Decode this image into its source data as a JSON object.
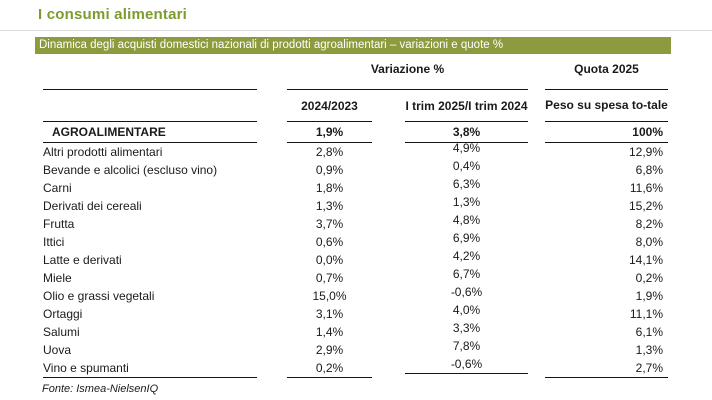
{
  "header": {
    "page_title": "I consumi alimentari",
    "banner": "Dinamica degli acquisti domestici nazionali di prodotti agroalimentari – variazioni e quote %"
  },
  "colors": {
    "title_green": "#7d9b2e",
    "banner_background": "#8e9a3e",
    "banner_text": "#ffffff",
    "table_line": "#151515",
    "top_divider": "#dcdcdc"
  },
  "table": {
    "group_headers": {
      "variazione": "Variazione %",
      "quota": "Quota 2025"
    },
    "sub_headers": {
      "col_2024_2023": "2024/2023",
      "col_trim": "I trim 2025/I trim 2024",
      "col_peso": "Peso su spesa to-tale"
    },
    "rows": [
      {
        "label": "AGROALIMENTARE",
        "var_2024_2023": "1,9%",
        "var_trim": "3,8%",
        "quota": "100%"
      },
      {
        "label": "Altri prodotti alimentari",
        "var_2024_2023": "2,8%",
        "var_trim": "4,9%",
        "quota": "12,9%"
      },
      {
        "label": "Bevande e alcolici (escluso vino)",
        "var_2024_2023": "0,9%",
        "var_trim": "0,4%",
        "quota": "6,8%"
      },
      {
        "label": "Carni",
        "var_2024_2023": "1,8%",
        "var_trim": "6,3%",
        "quota": "11,6%"
      },
      {
        "label": "Derivati dei cereali",
        "var_2024_2023": "1,3%",
        "var_trim": "1,3%",
        "quota": "15,2%"
      },
      {
        "label": "Frutta",
        "var_2024_2023": "3,7%",
        "var_trim": "4,8%",
        "quota": "8,2%"
      },
      {
        "label": "Ittici",
        "var_2024_2023": "0,6%",
        "var_trim": "6,9%",
        "quota": "8,0%"
      },
      {
        "label": "Latte e derivati",
        "var_2024_2023": "0,0%",
        "var_trim": "4,2%",
        "quota": "14,1%"
      },
      {
        "label": "Miele",
        "var_2024_2023": "0,7%",
        "var_trim": "6,7%",
        "quota": "0,2%"
      },
      {
        "label": "Olio e grassi vegetali",
        "var_2024_2023": "15,0%",
        "var_trim": "-0,6%",
        "quota": "1,9%"
      },
      {
        "label": "Ortaggi",
        "var_2024_2023": "3,1%",
        "var_trim": "4,0%",
        "quota": "11,1%"
      },
      {
        "label": "Salumi",
        "var_2024_2023": "1,4%",
        "var_trim": "3,3%",
        "quota": "6,1%"
      },
      {
        "label": "Uova",
        "var_2024_2023": "2,9%",
        "var_trim": "7,8%",
        "quota": "1,3%"
      },
      {
        "label": "Vino e spumanti",
        "var_2024_2023": "0,2%",
        "var_trim": "-0,6%",
        "quota": "2,7%"
      }
    ]
  },
  "footer": {
    "source": "Fonte: Ismea-NielsenIQ"
  }
}
